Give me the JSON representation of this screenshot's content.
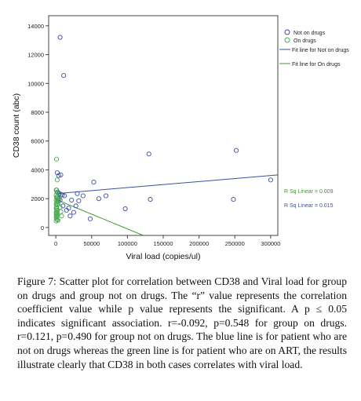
{
  "chart_data": {
    "type": "scatter",
    "xlabel": "Viral load (copies/ul)",
    "ylabel": "CD38 count (abc)",
    "xlim": [
      -10000,
      310000
    ],
    "ylim": [
      -550,
      14700
    ],
    "x_ticks": [
      0,
      50000,
      100000,
      150000,
      200000,
      250000,
      300000
    ],
    "y_ticks": [
      0,
      2000,
      4000,
      6000,
      8000,
      10000,
      12000,
      14000
    ],
    "grid": false,
    "legend_position": "top-right",
    "series": [
      {
        "name": "Not on drugs",
        "marker": "open-circle",
        "color": "#3a4fa0",
        "points": [
          [
            6000,
            13200
          ],
          [
            11000,
            10550
          ],
          [
            2000,
            3800
          ],
          [
            4000,
            3600
          ],
          [
            7000,
            3650
          ],
          [
            1000,
            2600
          ],
          [
            3000,
            2450
          ],
          [
            5000,
            2350
          ],
          [
            7000,
            2300
          ],
          [
            9000,
            2250
          ],
          [
            12000,
            2200
          ],
          [
            2000,
            2100
          ],
          [
            4000,
            2000
          ],
          [
            6000,
            1900
          ],
          [
            3000,
            1800
          ],
          [
            30000,
            2350
          ],
          [
            38000,
            2200
          ],
          [
            32000,
            1850
          ],
          [
            22000,
            1900
          ],
          [
            28000,
            1500
          ],
          [
            18000,
            1350
          ],
          [
            25000,
            1050
          ],
          [
            20000,
            800
          ],
          [
            15000,
            1200
          ],
          [
            10000,
            1500
          ],
          [
            53000,
            3150
          ],
          [
            60000,
            2000
          ],
          [
            70000,
            2200
          ],
          [
            48000,
            600
          ],
          [
            97000,
            1300
          ],
          [
            130000,
            5100
          ],
          [
            132000,
            1950
          ],
          [
            252000,
            5350
          ],
          [
            248000,
            1950
          ],
          [
            300000,
            3300
          ]
        ]
      },
      {
        "name": "On drugs",
        "marker": "open-circle",
        "color": "#4caf50",
        "points": [
          [
            1000,
            4750
          ],
          [
            2000,
            3300
          ],
          [
            500,
            2600
          ],
          [
            1500,
            2450
          ],
          [
            500,
            2250
          ],
          [
            1000,
            2100
          ],
          [
            2000,
            2000
          ],
          [
            500,
            1900
          ],
          [
            1500,
            1800
          ],
          [
            1000,
            1700
          ],
          [
            500,
            1600
          ],
          [
            2000,
            1550
          ],
          [
            1000,
            1450
          ],
          [
            500,
            1350
          ],
          [
            1500,
            1300
          ],
          [
            1000,
            1200
          ],
          [
            2000,
            1150
          ],
          [
            500,
            1050
          ],
          [
            1500,
            1000
          ],
          [
            1000,
            950
          ],
          [
            500,
            900
          ],
          [
            2000,
            850
          ],
          [
            1000,
            800
          ],
          [
            1500,
            750
          ],
          [
            500,
            700
          ],
          [
            1000,
            600
          ],
          [
            2000,
            550
          ],
          [
            3000,
            500
          ],
          [
            500,
            450
          ],
          [
            4000,
            1900
          ],
          [
            6000,
            1400
          ],
          [
            8000,
            800
          ],
          [
            5000,
            2100
          ],
          [
            3000,
            1600
          ],
          [
            7000,
            1100
          ]
        ]
      }
    ],
    "fit_lines": [
      {
        "name": "Fit line for Not on drugs",
        "color": "#3a4fa0",
        "from": [
          0,
          2350
        ],
        "to": [
          310000,
          3650
        ],
        "rsq_label": "R Sq Linear = 0.015"
      },
      {
        "name": "Fit line for On drugs",
        "color": "#3d9b2e",
        "from": [
          0,
          1950
        ],
        "to": [
          122000,
          -550
        ],
        "rsq_label": "R Sq Linear = 0.009"
      }
    ]
  },
  "legend": {
    "not_on_drugs": "Not on drugs",
    "on_drugs": "On drugs",
    "fit_not_on_drugs": "Fit line for Not on drugs",
    "fit_on_drugs": "Fit line for On drugs"
  },
  "caption": {
    "label": "Figure 7:",
    "text": " Scatter plot for correlation between CD38 and Viral load for group on drugs and group not on drugs. The “r” value represents the correlation coefficient value while p value represents the significant. A p ≤ 0.05 indicates significant association. r=-0.092, p=0.548 for group on drugs. r=0.121, p=0.490 for group not on drugs. The blue line is for patient who are not on drugs whereas the green line is for patient who are on ART, the results illustrate clearly that CD38 in both cases correlates with viral load."
  }
}
